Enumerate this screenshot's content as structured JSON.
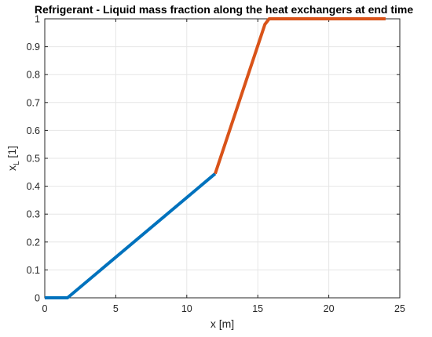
{
  "chart_data": {
    "type": "line",
    "title": "Refrigerant - Liquid mass fraction along the heat exchangers at end time",
    "xlabel": "x [m]",
    "ylabel": {
      "base": "x",
      "subscript": "L",
      "suffix": " [1]"
    },
    "xlim": [
      0,
      25
    ],
    "ylim": [
      0,
      1
    ],
    "xticks": [
      0,
      5,
      10,
      15,
      20,
      25
    ],
    "yticks": [
      0,
      0.1,
      0.2,
      0.3,
      0.4,
      0.5,
      0.6,
      0.7,
      0.8,
      0.9,
      1
    ],
    "grid": true,
    "series": [
      {
        "color": "#0072BD",
        "x": [
          0,
          1.6,
          12
        ],
        "y": [
          0,
          0,
          0.445
        ]
      },
      {
        "color": "#D95319",
        "x": [
          12,
          15.5,
          15.8,
          24
        ],
        "y": [
          0.445,
          0.98,
          1,
          1
        ]
      }
    ]
  }
}
